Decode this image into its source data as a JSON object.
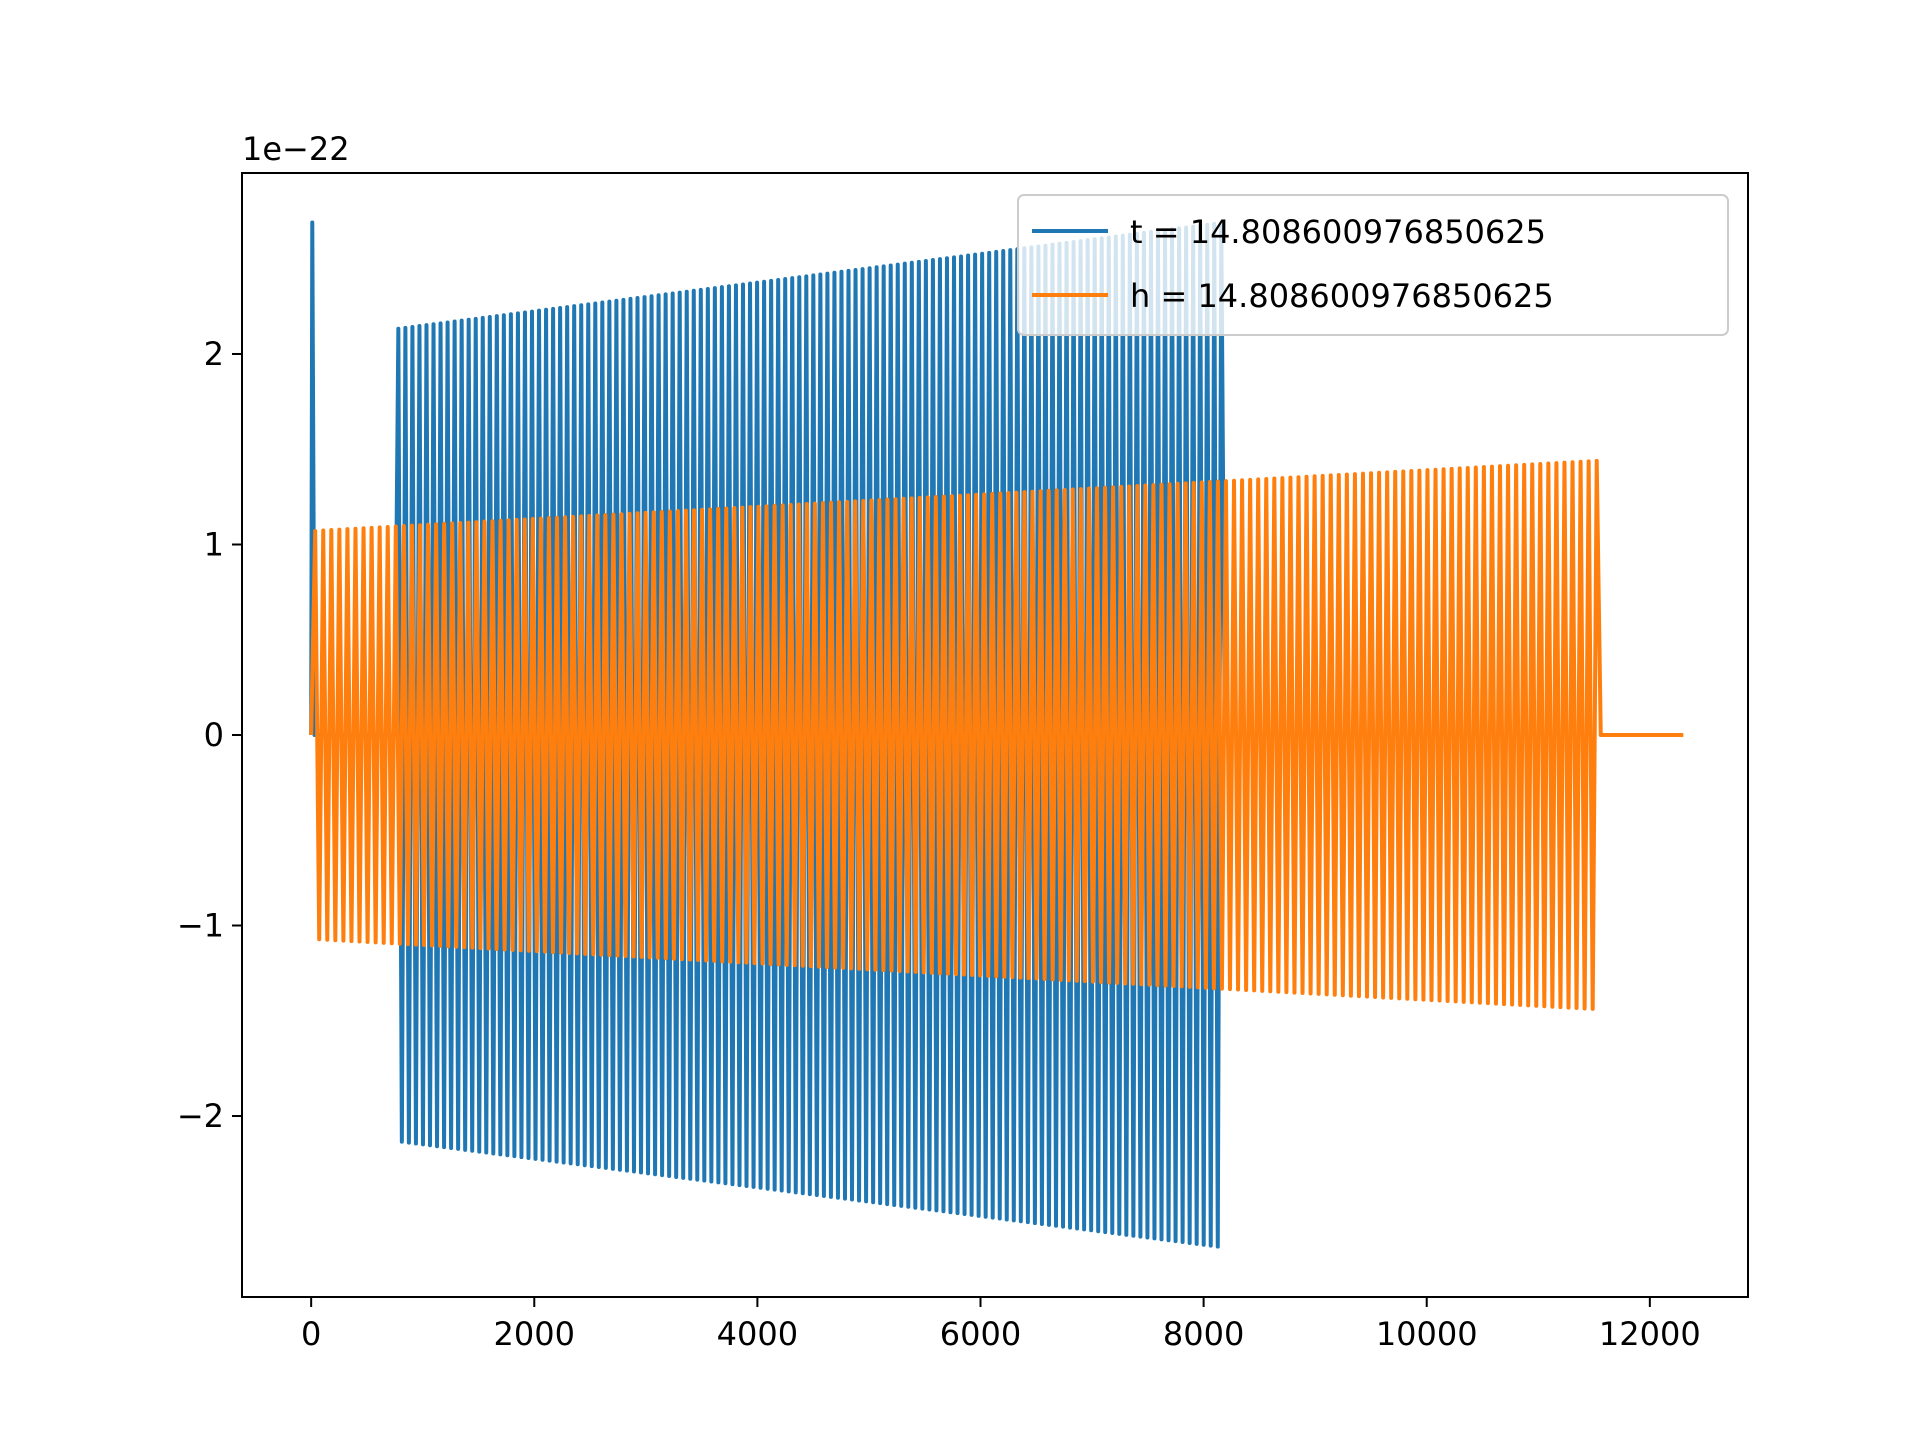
{
  "chart_data": {
    "type": "line",
    "title": "",
    "xlabel": "",
    "ylabel": "",
    "y_offset_label": "1e−22",
    "xlim": [
      -620,
      12880
    ],
    "ylim": [
      -2.95,
      2.95
    ],
    "x_ticks": [
      0,
      2000,
      4000,
      6000,
      8000,
      10000,
      12000
    ],
    "x_tick_labels": [
      "0",
      "2000",
      "4000",
      "6000",
      "8000",
      "10000",
      "12000"
    ],
    "y_ticks": [
      -2,
      -1,
      0,
      1,
      2
    ],
    "y_tick_labels": [
      "−2",
      "−1",
      "0",
      "1",
      "2"
    ],
    "grid": false,
    "legend_position": "top-right",
    "series": [
      {
        "name": "t = 14.808600976850625",
        "color": "#1f77b4",
        "x_start": 0,
        "x_end": 8190,
        "initial_spike_peak": 2.69,
        "initial_spike_x": 10,
        "quiet_until": 750,
        "amplitude_start": 2.13,
        "amplitude_end": 2.69,
        "cycles": 118
      },
      {
        "name": "h = 14.808600976850625",
        "color": "#ff7f0e",
        "x_start": 0,
        "x_end": 11560,
        "flat_until": 12300,
        "amplitude_start": 1.07,
        "amplitude_end": 1.44,
        "cycles": 160
      }
    ]
  }
}
